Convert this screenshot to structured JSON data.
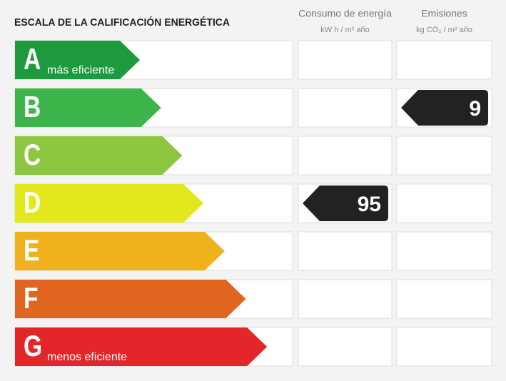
{
  "title": "ESCALA DE LA CALIFICACIÓN ENERGÉTICA",
  "columns": [
    {
      "name": "Consumo de energía",
      "unit": "kW h / m² año"
    },
    {
      "name": "Emisiones",
      "unit": "kg CO₂ / m² año"
    }
  ],
  "rows": [
    {
      "letter": "A",
      "note": "más eficiente",
      "color": "#1e9a3e"
    },
    {
      "letter": "B",
      "color": "#3cb54a"
    },
    {
      "letter": "C",
      "color": "#8dc63f"
    },
    {
      "letter": "D",
      "color": "#e3e81c"
    },
    {
      "letter": "E",
      "color": "#f0b21c"
    },
    {
      "letter": "F",
      "color": "#e1661f"
    },
    {
      "letter": "G",
      "note": "menos eficiente",
      "color": "#e4252a"
    }
  ],
  "indicators": [
    {
      "column": "Consumo de energía",
      "rating": "D",
      "value": 95
    },
    {
      "column": "Emisiones",
      "rating": "B",
      "value": 9
    }
  ]
}
